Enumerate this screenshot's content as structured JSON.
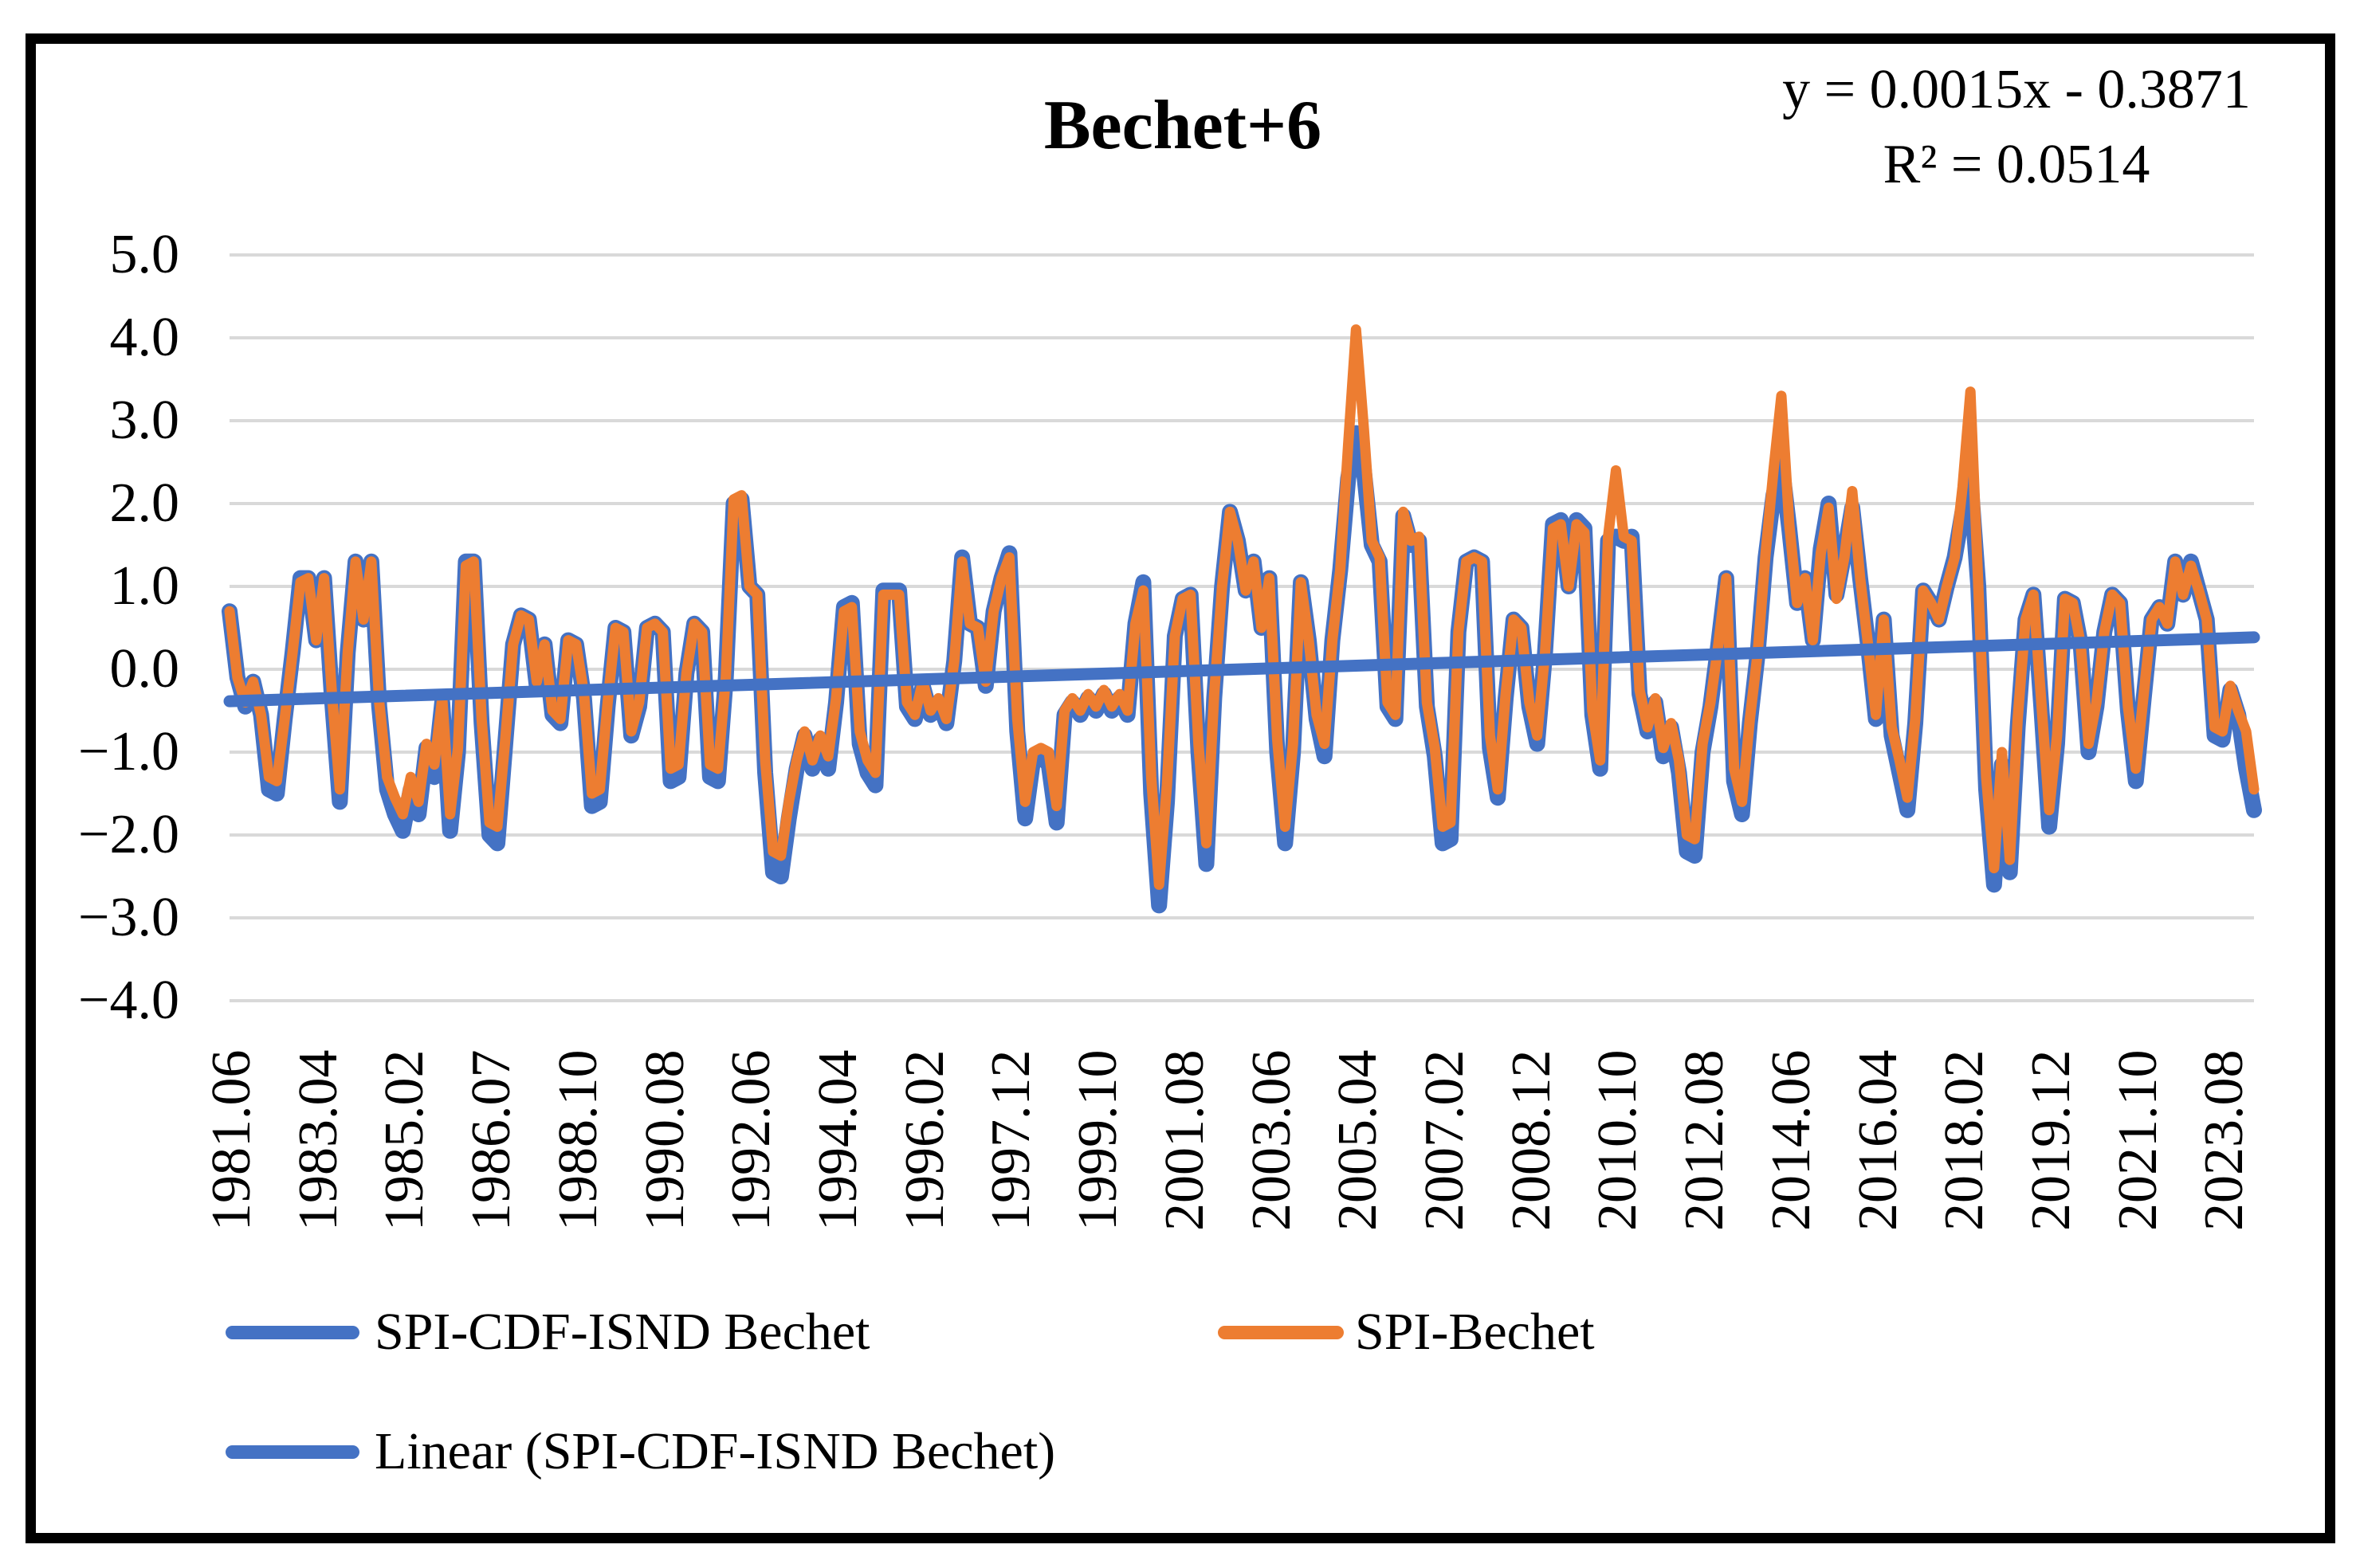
{
  "title": "Bechet+6",
  "equation": {
    "line1": "y = 0.0015x - 0.3871",
    "line2": "R² = 0.0514"
  },
  "colors": {
    "series_blue": "#4472C4",
    "series_orange": "#ED7D31",
    "gridline": "#D9D9D9",
    "frame": "#000000",
    "background": "#FFFFFF"
  },
  "chart_data": {
    "type": "line",
    "title": "Bechet+6",
    "xlabel": "",
    "ylabel": "",
    "ylim": [
      -4.0,
      5.0
    ],
    "grid": "horizontal",
    "legend_position": "bottom",
    "x_start": "1981.06",
    "x_end": "2024.04",
    "sample_interval_months": 2,
    "y_tick_labels": [
      "5.0",
      "4.0",
      "3.0",
      "2.0",
      "1.0",
      "0.0",
      "−1.0",
      "−2.0",
      "−3.0",
      "−4.0"
    ],
    "x_tick_labels": [
      "1981.06",
      "1983.04",
      "1985.02",
      "1986.07",
      "1988.10",
      "1990.08",
      "1992.06",
      "1994.04",
      "1996.02",
      "1997.12",
      "1999.10",
      "2001.08",
      "2003.06",
      "2005.04",
      "2007.02",
      "2008.12",
      "2010.10",
      "2012.08",
      "2014.06",
      "2016.04",
      "2018.02",
      "2019.12",
      "2021.10",
      "2023.08"
    ],
    "x_ticks_every_samples": 11,
    "trend": {
      "name": "Linear (SPI-CDF-ISND Bechet)",
      "slope_per_month": 0.0015,
      "intercept": -0.3871
    },
    "series": [
      {
        "name": "SPI-CDF-ISND Bechet",
        "color": "#4472C4",
        "values": [
          0.7,
          -0.1,
          -0.45,
          -0.15,
          -0.55,
          -1.45,
          -1.5,
          -0.6,
          0.2,
          1.1,
          1.1,
          0.35,
          1.1,
          -0.35,
          -1.6,
          0.2,
          1.3,
          0.6,
          1.3,
          -0.45,
          -1.45,
          -1.75,
          -1.95,
          -1.45,
          -1.75,
          -0.95,
          -1.3,
          -0.4,
          -1.95,
          -1.0,
          1.3,
          1.3,
          -0.65,
          -2.0,
          -2.1,
          -0.9,
          0.3,
          0.65,
          0.6,
          -0.2,
          0.3,
          -0.55,
          -0.65,
          0.35,
          0.3,
          -0.35,
          -1.65,
          -1.6,
          -0.45,
          0.5,
          0.45,
          -0.8,
          -0.45,
          0.5,
          0.55,
          0.45,
          -1.35,
          -1.3,
          -0.05,
          0.55,
          0.45,
          -1.3,
          -1.35,
          -0.1,
          2.0,
          2.05,
          1.0,
          0.9,
          -1.25,
          -2.45,
          -2.5,
          -1.8,
          -1.2,
          -0.8,
          -1.2,
          -0.85,
          -1.2,
          -0.4,
          0.75,
          0.8,
          -0.9,
          -1.25,
          -1.4,
          0.95,
          0.95,
          0.95,
          -0.45,
          -0.6,
          -0.2,
          -0.55,
          -0.4,
          -0.65,
          0.1,
          1.35,
          0.55,
          0.5,
          -0.2,
          0.7,
          1.1,
          1.4,
          -0.75,
          -1.8,
          -1.1,
          -1.05,
          -1.15,
          -1.85,
          -0.55,
          -0.4,
          -0.55,
          -0.35,
          -0.5,
          -0.3,
          -0.5,
          -0.35,
          -0.55,
          0.55,
          1.05,
          -1.5,
          -2.85,
          -1.6,
          0.4,
          0.85,
          0.9,
          -1.0,
          -2.35,
          -0.35,
          1.0,
          1.9,
          1.55,
          0.95,
          1.3,
          0.5,
          1.1,
          -1.0,
          -2.1,
          -1.0,
          1.05,
          0.35,
          -0.6,
          -1.05,
          0.35,
          1.2,
          2.3,
          2.85,
          2.4,
          1.5,
          1.3,
          -0.45,
          -0.6,
          1.85,
          1.5,
          1.55,
          -0.45,
          -1.05,
          -2.1,
          -2.05,
          0.45,
          1.3,
          1.35,
          1.3,
          -0.95,
          -1.55,
          -0.35,
          0.6,
          0.5,
          -0.45,
          -0.9,
          0.2,
          1.75,
          1.8,
          1.0,
          1.8,
          1.7,
          -0.55,
          -1.2,
          1.55,
          1.6,
          1.55,
          1.6,
          -0.3,
          -0.75,
          -0.4,
          -1.05,
          -0.7,
          -1.25,
          -2.2,
          -2.25,
          -1.0,
          -0.45,
          0.3,
          1.1,
          -1.35,
          -1.75,
          -0.65,
          0.2,
          1.35,
          2.1,
          2.5,
          1.7,
          0.8,
          1.1,
          0.35,
          1.45,
          2.0,
          0.9,
          1.4,
          1.95,
          1.1,
          0.3,
          -0.6,
          0.6,
          -0.8,
          -1.25,
          -1.7,
          -0.65,
          0.95,
          0.8,
          0.6,
          1.0,
          1.35,
          1.9,
          2.3,
          1.0,
          -1.45,
          -2.6,
          -1.15,
          -2.45,
          -0.7,
          0.6,
          0.9,
          -0.45,
          -1.9,
          -0.9,
          0.85,
          0.8,
          0.3,
          -1.0,
          -0.45,
          0.45,
          0.9,
          0.8,
          -0.5,
          -1.35,
          -0.35,
          0.6,
          0.75,
          0.55,
          1.3,
          0.9,
          1.3,
          0.95,
          0.6,
          -0.8,
          -0.85,
          -0.25,
          -0.55,
          -1.2,
          -1.7
        ]
      },
      {
        "name": "SPI-Bechet",
        "color": "#ED7D31",
        "values": [
          0.7,
          -0.1,
          -0.4,
          -0.15,
          -0.55,
          -1.3,
          -1.35,
          -0.6,
          0.2,
          1.05,
          1.1,
          0.35,
          1.1,
          -0.3,
          -1.45,
          0.2,
          1.3,
          0.6,
          1.3,
          -0.4,
          -1.3,
          -1.55,
          -1.75,
          -1.3,
          -1.6,
          -0.9,
          -1.15,
          -0.35,
          -1.75,
          -0.95,
          1.25,
          1.3,
          -0.6,
          -1.85,
          -1.9,
          -0.85,
          0.3,
          0.65,
          0.6,
          -0.15,
          0.3,
          -0.5,
          -0.6,
          0.35,
          0.3,
          -0.3,
          -1.5,
          -1.45,
          -0.4,
          0.5,
          0.45,
          -0.75,
          -0.4,
          0.5,
          0.55,
          0.45,
          -1.2,
          -1.15,
          -0.05,
          0.55,
          0.45,
          -1.15,
          -1.2,
          -0.1,
          2.05,
          2.1,
          1.0,
          0.9,
          -1.1,
          -2.2,
          -2.25,
          -1.6,
          -1.1,
          -0.75,
          -1.1,
          -0.8,
          -1.05,
          -0.35,
          0.7,
          0.75,
          -0.75,
          -1.1,
          -1.25,
          0.9,
          0.9,
          0.9,
          -0.4,
          -0.55,
          -0.15,
          -0.5,
          -0.35,
          -0.6,
          0.1,
          1.3,
          0.55,
          0.5,
          -0.15,
          0.7,
          1.1,
          1.35,
          -0.6,
          -1.6,
          -1.0,
          -0.95,
          -1.0,
          -1.65,
          -0.5,
          -0.35,
          -0.5,
          -0.3,
          -0.45,
          -0.25,
          -0.45,
          -0.3,
          -0.5,
          0.55,
          0.95,
          -1.3,
          -2.6,
          -1.4,
          0.4,
          0.85,
          0.9,
          -0.9,
          -2.1,
          -0.3,
          1.0,
          1.9,
          1.55,
          0.95,
          1.3,
          0.5,
          1.1,
          -0.85,
          -1.9,
          -0.9,
          1.05,
          0.35,
          -0.55,
          -0.9,
          0.35,
          1.2,
          2.7,
          4.1,
          2.9,
          1.55,
          1.35,
          -0.4,
          -0.55,
          1.9,
          1.55,
          1.6,
          -0.4,
          -0.95,
          -1.9,
          -1.85,
          0.45,
          1.3,
          1.35,
          1.3,
          -0.8,
          -1.45,
          -0.3,
          0.6,
          0.5,
          -0.4,
          -0.8,
          0.2,
          1.7,
          1.75,
          1.0,
          1.75,
          1.65,
          -0.5,
          -1.1,
          1.6,
          2.4,
          1.6,
          1.55,
          -0.25,
          -0.7,
          -0.35,
          -0.95,
          -0.65,
          -1.1,
          -2.0,
          -2.05,
          -0.9,
          -0.4,
          0.3,
          1.1,
          -1.2,
          -1.6,
          -0.6,
          0.2,
          1.4,
          2.4,
          3.3,
          1.75,
          0.8,
          1.1,
          0.35,
          1.4,
          1.95,
          0.85,
          1.35,
          2.15,
          1.1,
          0.3,
          -0.55,
          0.6,
          -0.7,
          -1.1,
          -1.55,
          -0.6,
          0.95,
          0.8,
          0.6,
          1.0,
          1.35,
          2.2,
          3.35,
          1.0,
          -1.3,
          -2.4,
          -1.0,
          -2.3,
          -0.6,
          0.6,
          0.9,
          -0.4,
          -1.7,
          -0.8,
          0.85,
          0.8,
          0.3,
          -0.9,
          -0.4,
          0.45,
          0.9,
          0.8,
          -0.45,
          -1.2,
          -0.3,
          0.6,
          0.75,
          0.55,
          1.3,
          0.9,
          1.25,
          0.95,
          0.6,
          -0.7,
          -0.75,
          -0.2,
          -0.5,
          -0.75,
          -1.45
        ]
      }
    ],
    "legend": [
      "SPI-CDF-ISND Bechet",
      "SPI-Bechet",
      "Linear (SPI-CDF-ISND Bechet)"
    ]
  }
}
